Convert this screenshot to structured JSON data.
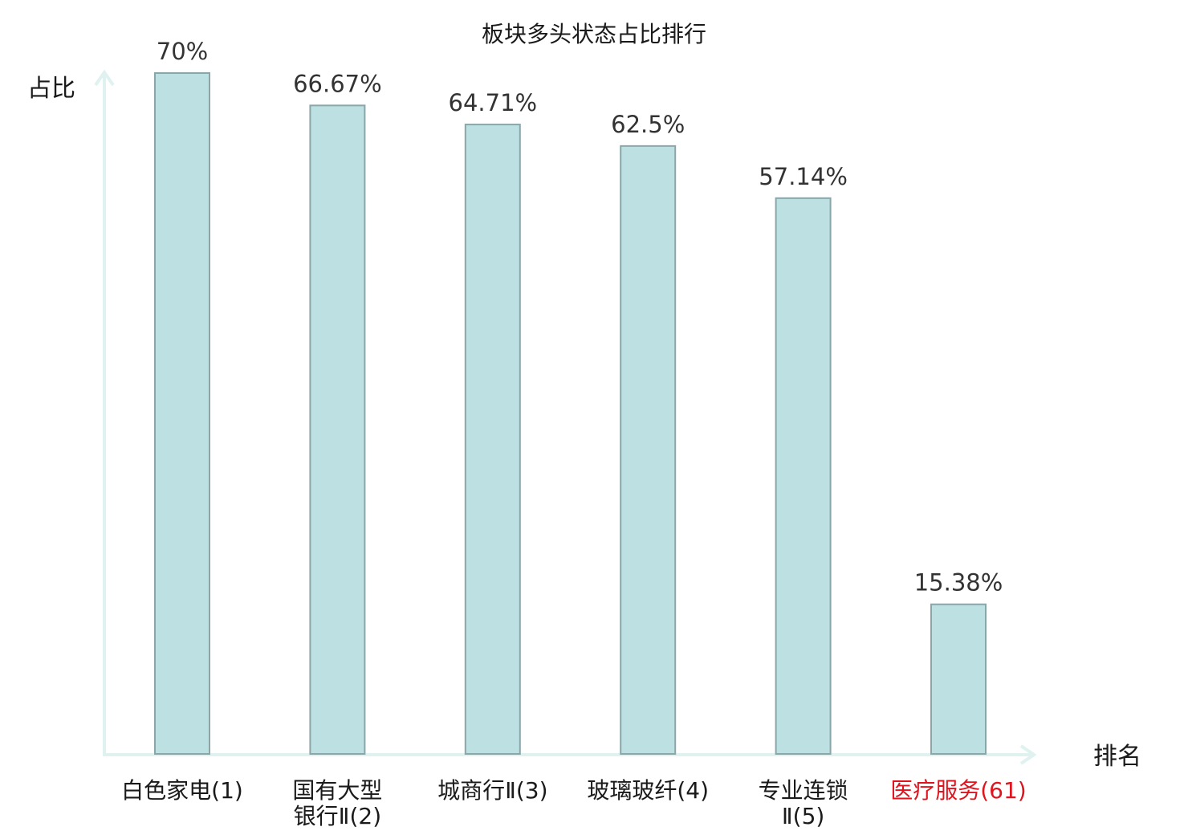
{
  "chart_data": {
    "type": "bar",
    "title": "板块多头状态占比排行",
    "ylabel": "占比",
    "xlabel": "排名",
    "ylim": [
      0,
      70
    ],
    "categories": [
      [
        "白色家电(1)"
      ],
      [
        "国有大型",
        "银行Ⅱ(2)"
      ],
      [
        "城商行Ⅱ(3)"
      ],
      [
        "玻璃玻纤(4)"
      ],
      [
        "专业连锁",
        "Ⅱ(5)"
      ],
      [
        "医疗服务(61)"
      ]
    ],
    "values": [
      70,
      66.67,
      64.71,
      62.5,
      57.14,
      15.38
    ],
    "value_labels": [
      "70%",
      "66.67%",
      "64.71%",
      "62.5%",
      "57.14%",
      "15.38%"
    ],
    "highlight_index": 5,
    "grid": false,
    "legend": "none"
  },
  "colors": {
    "bar_fill": "#bde0e3",
    "bar_stroke": "#8aa6a8",
    "axis": "#dff2f0",
    "label_default": "#1a1a1a",
    "label_highlight": "#e0141e"
  }
}
